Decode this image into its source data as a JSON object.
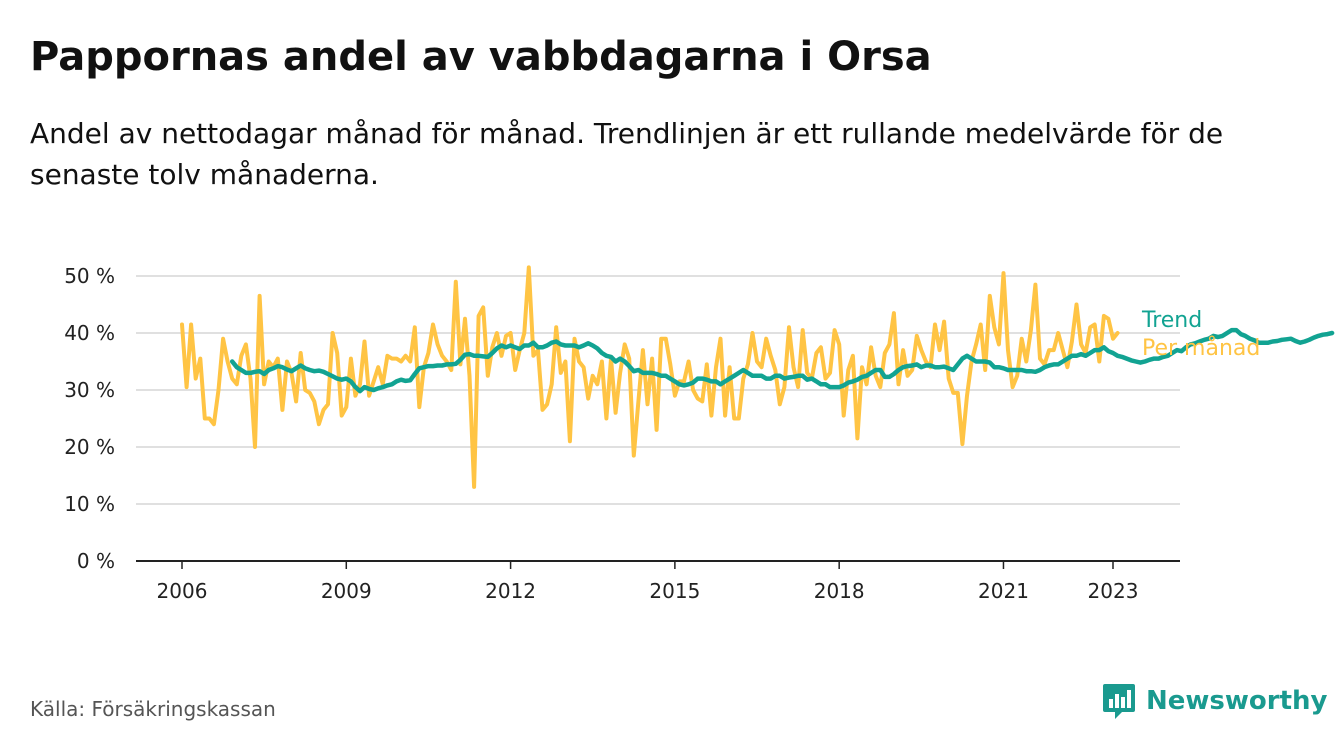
{
  "header": {
    "title": "Pappornas andel av vabbdagarna i Orsa",
    "subtitle": "Andel av nettodagar månad för månad. Trendlinjen är ett rullande medelvärde för de senaste tolv månaderna."
  },
  "footer": {
    "source": "Källa: Försäkringskassan",
    "brand": "Newsworthy",
    "brand_icon": "newsworthy-logo-icon"
  },
  "colors": {
    "trend": "#12a392",
    "monthly": "#ffc444",
    "grid": "#d6d6d6",
    "axis": "#222222",
    "brand": "#1a9a8f"
  },
  "chart_data": {
    "type": "line",
    "title": "Pappornas andel av vabbdagarna i Orsa",
    "xlabel": "",
    "ylabel": "",
    "x_range": [
      "2006-01",
      "2023-05"
    ],
    "ylim": [
      0,
      50
    ],
    "x_ticks": [
      "2006",
      "2009",
      "2012",
      "2015",
      "2018",
      "2021",
      "2023"
    ],
    "y_ticks": [
      "0 %",
      "10 %",
      "20 %",
      "30 %",
      "40 %",
      "50 %"
    ],
    "grid": true,
    "legend": "right-end labels",
    "series": [
      {
        "name": "Per månad",
        "start": "2006-01",
        "values": [
          41.5,
          30.5,
          41.5,
          32,
          35.5,
          25,
          25,
          24,
          30,
          39,
          35,
          32,
          31,
          36,
          38,
          32,
          20,
          46.5,
          31,
          35,
          34,
          35.5,
          26.5,
          35,
          33,
          28,
          36.5,
          30,
          29.5,
          28,
          24,
          26.5,
          27.5,
          40,
          36.5,
          25.5,
          27,
          35.5,
          29,
          31,
          38.5,
          29,
          31.5,
          34,
          31,
          36,
          35.5,
          35.5,
          35,
          36,
          35,
          41,
          27,
          34,
          36.5,
          41.5,
          38,
          36,
          35,
          33.5,
          49,
          34.5,
          42.5,
          32.5,
          13,
          43,
          44.5,
          32.5,
          37.5,
          40,
          36,
          39.5,
          40,
          33.5,
          37,
          40,
          51.5,
          36,
          37,
          26.5,
          27.5,
          31,
          41,
          33,
          35,
          21,
          39,
          35,
          34,
          28.5,
          32.5,
          31,
          35,
          25,
          35.5,
          26,
          33,
          38,
          35.5,
          18.5,
          28,
          37,
          27.5,
          35.5,
          23,
          39,
          39,
          34.5,
          29,
          31.5,
          31.5,
          35,
          30,
          28.5,
          28,
          34.5,
          25.5,
          34,
          39,
          25.5,
          34,
          25,
          25,
          32,
          34.5,
          40,
          35,
          34,
          39,
          36,
          33.5,
          27.5,
          30.5,
          41,
          34,
          30.5,
          40.5,
          33,
          32,
          36.5,
          37.5,
          32,
          33,
          40.5,
          38,
          25.5,
          33.5,
          36,
          21.5,
          34,
          31,
          37.5,
          32.5,
          30.5,
          36.5,
          38,
          43.5,
          31,
          37,
          32.5,
          33.5,
          39.5,
          37,
          35,
          34,
          41.5,
          37,
          42,
          32,
          29.5,
          29.5,
          20.5,
          29,
          35,
          38,
          41.5,
          33.5,
          46.5,
          41,
          38,
          50.5,
          37,
          30.5,
          32.5,
          39,
          35,
          40.5,
          48.5,
          35.5,
          34.5,
          37,
          37,
          40,
          37,
          34,
          38.5,
          45,
          38,
          36.5,
          41,
          41.5,
          35,
          43,
          42.5,
          39,
          40
        ]
      },
      {
        "name": "Trend",
        "start": "2006-12",
        "values": [
          35,
          34,
          33.5,
          33,
          33,
          33.2,
          33.3,
          32.8,
          33.5,
          33.8,
          34.2,
          34,
          33.6,
          33.3,
          33.8,
          34.3,
          33.8,
          33.5,
          33.3,
          33.4,
          33.2,
          32.8,
          32.4,
          32,
          31.8,
          32,
          31.5,
          30.5,
          29.8,
          30.5,
          30.2,
          30,
          30.3,
          30.5,
          30.8,
          31,
          31.5,
          31.8,
          31.6,
          31.7,
          32.8,
          33.8,
          34,
          34.2,
          34.2,
          34.3,
          34.3,
          34.5,
          34.5,
          34.6,
          35.3,
          36.2,
          36.3,
          36,
          36,
          35.9,
          35.8,
          36.5,
          37.3,
          37.8,
          37.5,
          37.8,
          37.5,
          37.2,
          37.8,
          37.8,
          38.3,
          37.5,
          37.5,
          37.8,
          38.3,
          38.5,
          38,
          37.8,
          37.8,
          37.8,
          37.5,
          37.8,
          38.2,
          37.8,
          37.3,
          36.5,
          36,
          35.8,
          35,
          35.5,
          35,
          34.2,
          33.3,
          33.5,
          33,
          33,
          33,
          32.8,
          32.5,
          32.5,
          32,
          31.5,
          31,
          30.8,
          31,
          31.3,
          32,
          32,
          31.8,
          31.5,
          31.5,
          31,
          31.5,
          32,
          32.5,
          33,
          33.5,
          33,
          32.5,
          32.5,
          32.5,
          32,
          32,
          32.5,
          32.5,
          32,
          32.2,
          32.3,
          32.5,
          32.5,
          31.8,
          32,
          31.5,
          31,
          31,
          30.5,
          30.5,
          30.5,
          30.8,
          31.3,
          31.5,
          31.8,
          32.3,
          32.5,
          33,
          33.5,
          33.5,
          32.3,
          32.3,
          32.8,
          33.5,
          34,
          34.2,
          34.3,
          34.5,
          34,
          34.3,
          34.3,
          34,
          34,
          34.1,
          33.8,
          33.5,
          34.5,
          35.5,
          36,
          35.5,
          35,
          35,
          35,
          34.8,
          34,
          34,
          33.8,
          33.5,
          33.5,
          33.5,
          33.5,
          33.3,
          33.3,
          33.2,
          33.5,
          34,
          34.3,
          34.5,
          34.5,
          35,
          35.5,
          36,
          36,
          36.3,
          36,
          36.5,
          37,
          37,
          37.5,
          36.8,
          36.5,
          36,
          35.8,
          35.5,
          35.2,
          35,
          34.8,
          35,
          35.3,
          35.5,
          35.5,
          35.8,
          36,
          36.5,
          37,
          36.8,
          37.5,
          38,
          38.2,
          38.5,
          38.8,
          39,
          39.5,
          39.3,
          39.5,
          40,
          40.5,
          40.5,
          39.8,
          39.5,
          39,
          38.7,
          38.3,
          38.3,
          38.3,
          38.5,
          38.6,
          38.8,
          38.9,
          39,
          38.6,
          38.3,
          38.5,
          38.8,
          39.2,
          39.5,
          39.7,
          39.8,
          40
        ]
      }
    ]
  }
}
